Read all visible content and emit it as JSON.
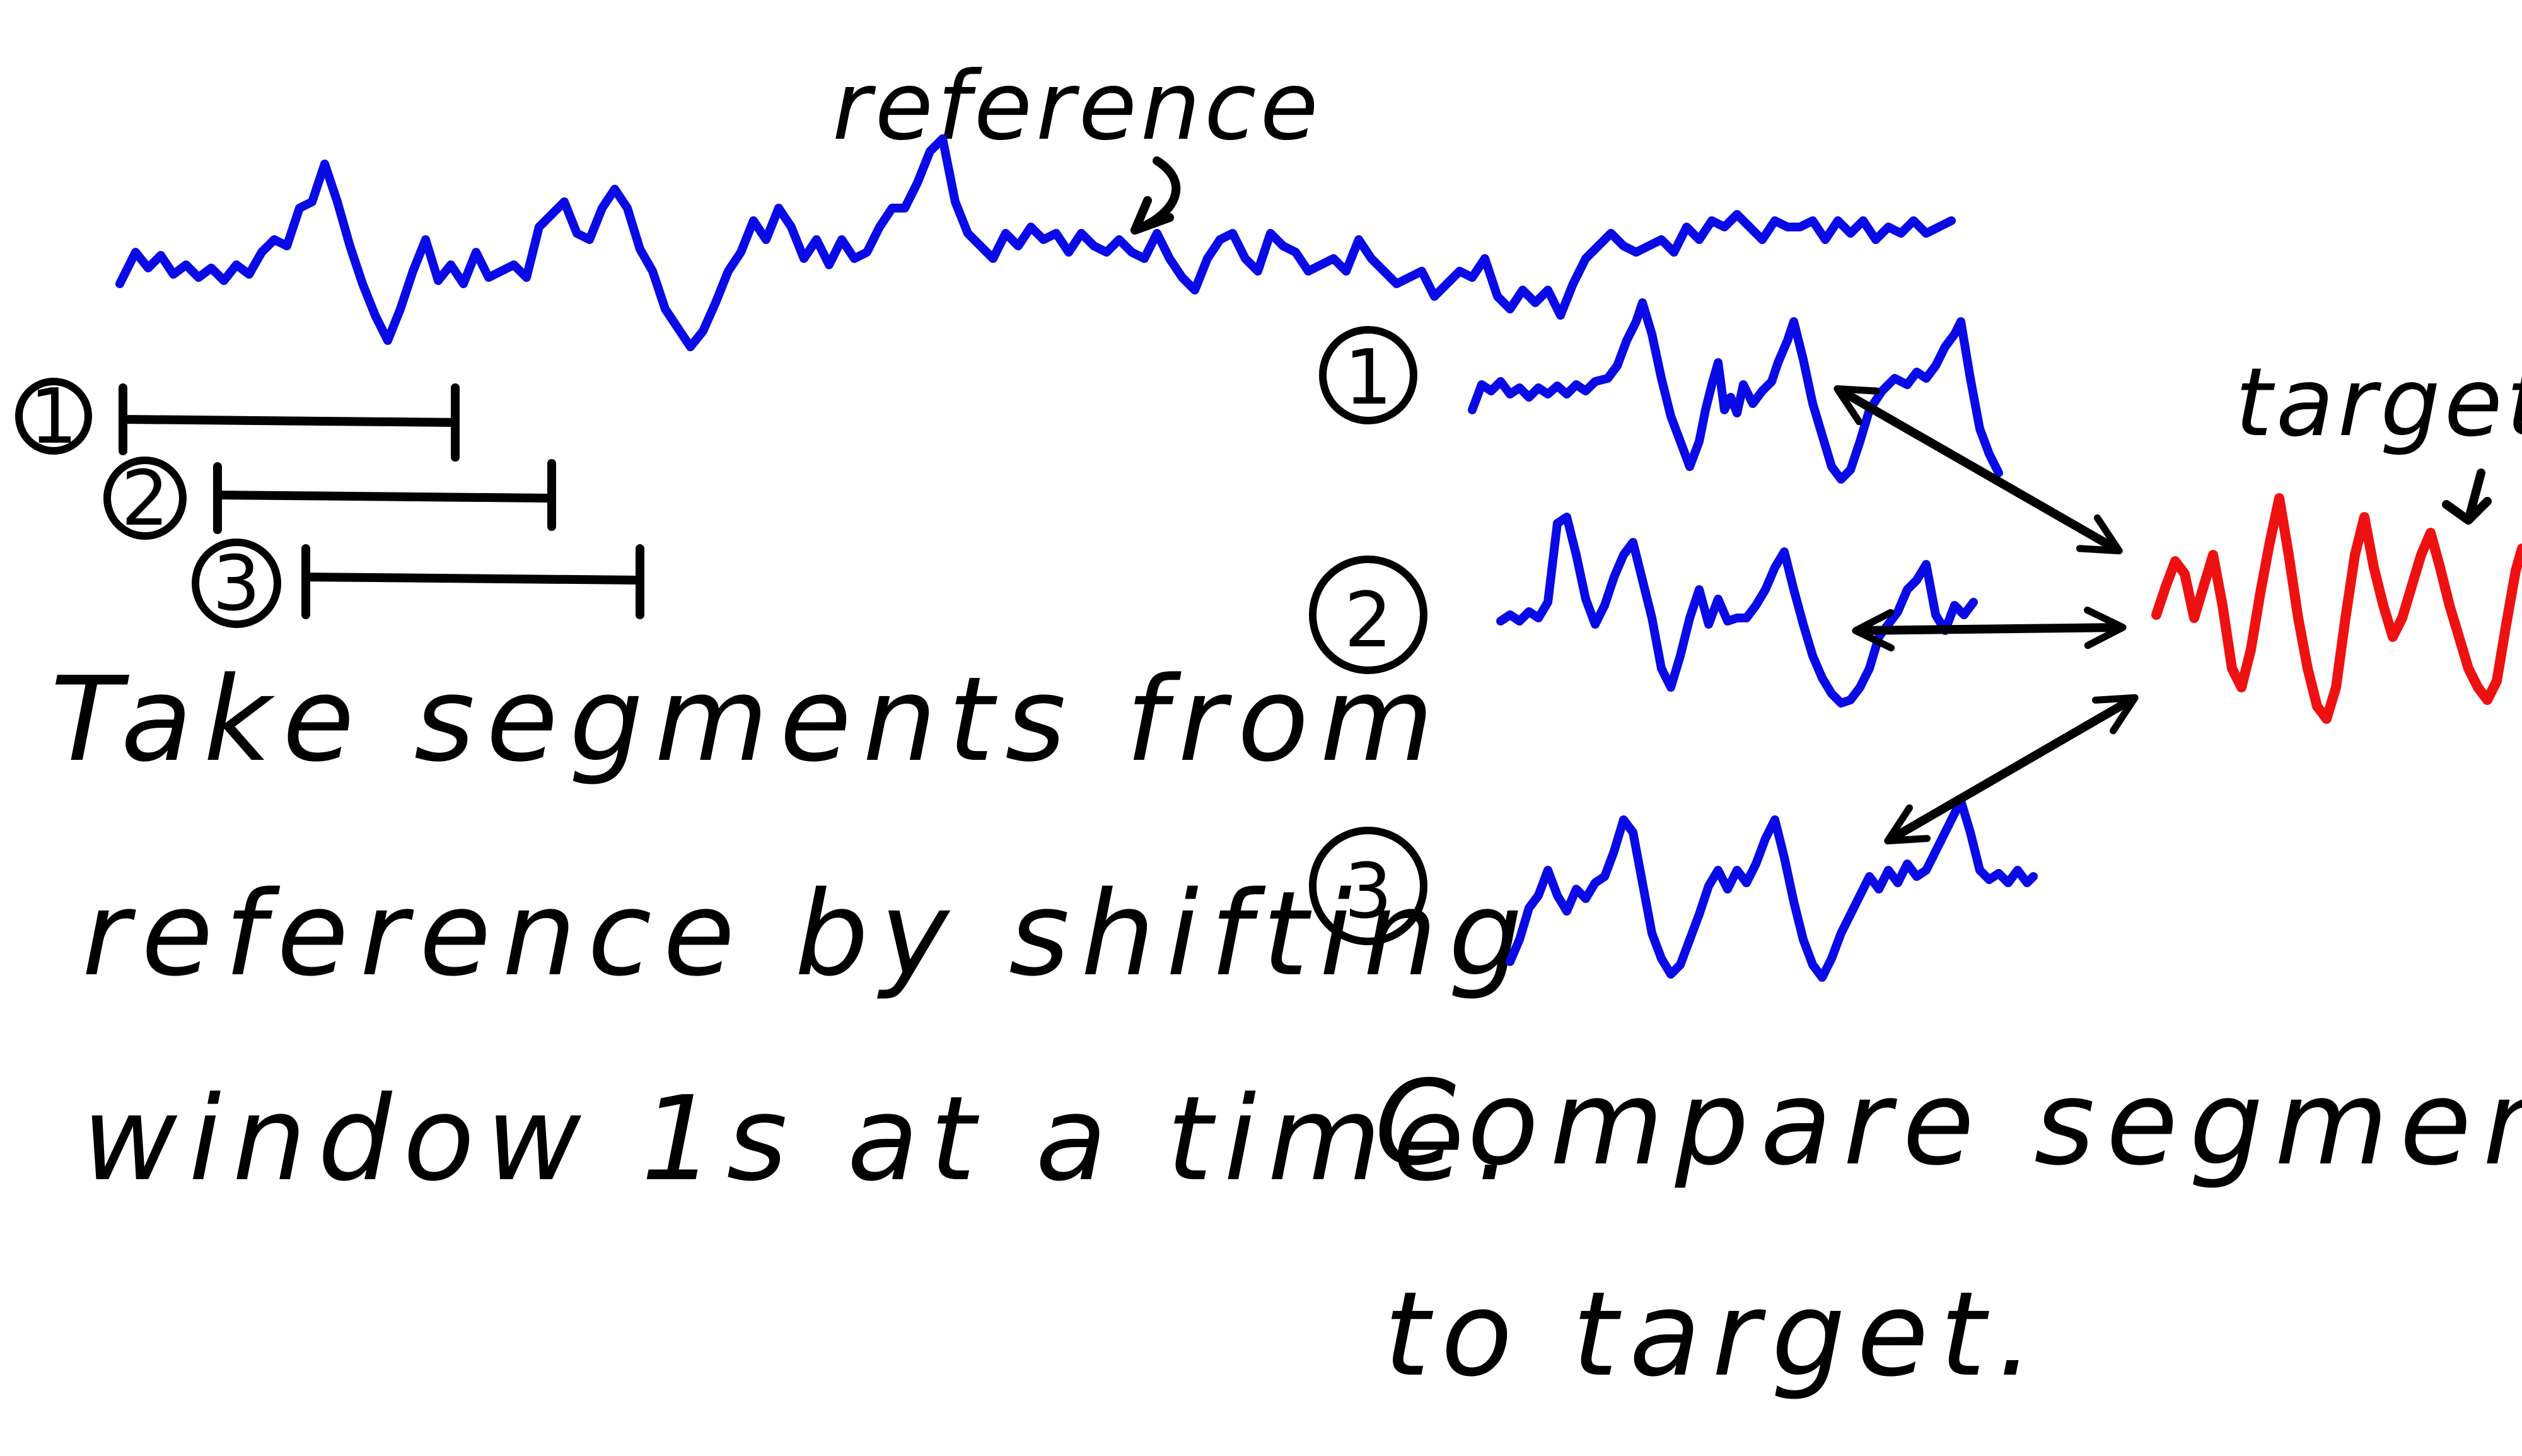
{
  "reference_label": "reference",
  "target_label": "target",
  "left_caption": {
    "line1": "Take segments from",
    "line2": "reference by shifting",
    "line3": "window 1s at a time."
  },
  "right_caption": {
    "line1": "Compare segments",
    "line2": "to target."
  },
  "window_markers": [
    "1",
    "2",
    "3"
  ],
  "segment_markers": [
    "1",
    "2",
    "3"
  ],
  "colors": {
    "reference_wave": "#0a0ae6",
    "target_wave": "#ee1111",
    "ink": "#000000"
  }
}
